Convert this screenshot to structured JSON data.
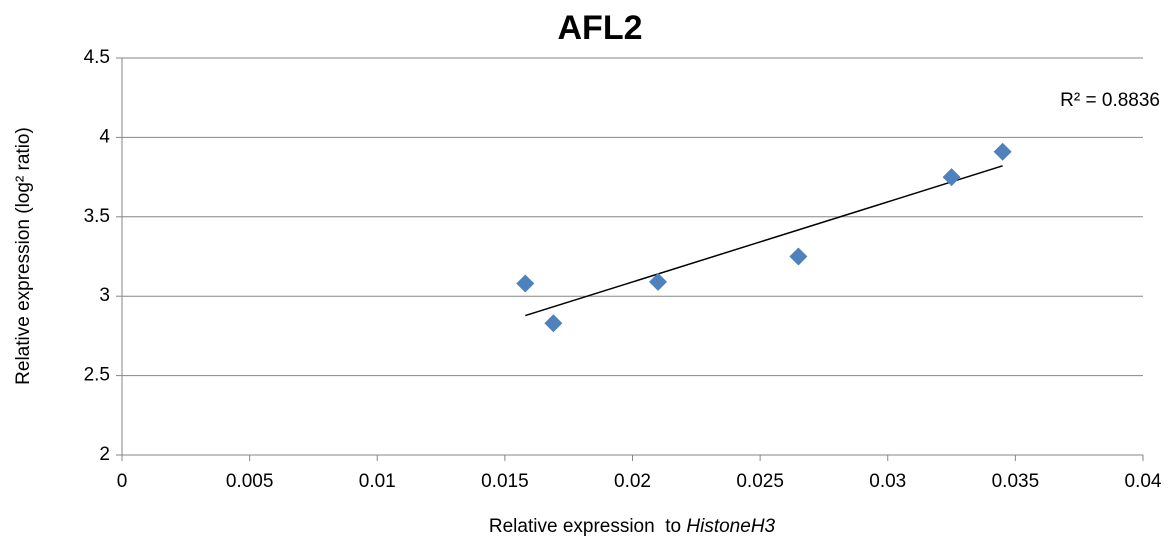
{
  "chart_data": {
    "type": "scatter",
    "title": "AFL2",
    "xlabel": [
      "Relative expression  to ",
      "HistoneH3"
    ],
    "ylabel": "Relative expression (log² ratio)",
    "x": [
      0.0158,
      0.0169,
      0.021,
      0.0265,
      0.0325,
      0.0345
    ],
    "series": [
      {
        "name": "AFL2",
        "color": "#4f81bd",
        "values": [
          3.08,
          2.83,
          3.09,
          3.25,
          3.75,
          3.91
        ]
      }
    ],
    "trendline": "linear",
    "trendline_label": "R² = 0.8836",
    "xlim": [
      0,
      0.04
    ],
    "xticks": [
      0,
      0.005,
      0.01,
      0.015,
      0.02,
      0.025,
      0.03,
      0.035,
      0.04
    ],
    "ylim": [
      2,
      4.5
    ],
    "yticks": [
      2,
      2.5,
      3,
      3.5,
      4,
      4.5
    ],
    "grid": "y"
  }
}
